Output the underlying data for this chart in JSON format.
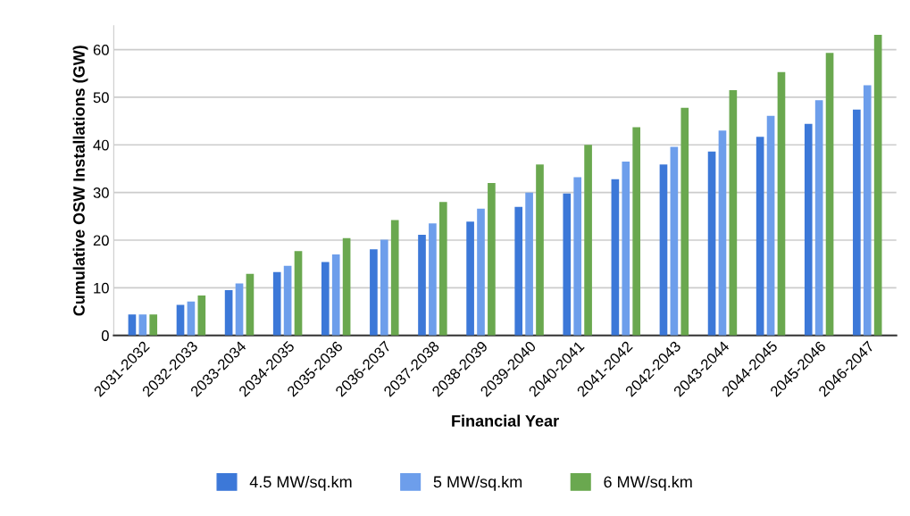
{
  "chart_data": {
    "type": "bar",
    "xlabel": "Financial Year",
    "ylabel": "Cumulative OSW Installations (GW)",
    "categories": [
      "2031-2032",
      "2032-2033",
      "2033-2034",
      "2034-2035",
      "2035-2036",
      "2036-2037",
      "2037-2038",
      "2038-2039",
      "2039-2040",
      "2040-2041",
      "2041-2042",
      "2042-2043",
      "2043-2044",
      "2044-2045",
      "2045-2046",
      "2046-2047"
    ],
    "series": [
      {
        "name": "4.5 MW/sq.km",
        "color": "#3c78d8",
        "values": [
          4.4,
          6.4,
          9.5,
          13.3,
          15.4,
          18.1,
          21.1,
          23.9,
          27.0,
          29.8,
          32.8,
          35.9,
          38.6,
          41.7,
          44.4,
          47.4
        ]
      },
      {
        "name": "5 MW/sq.km",
        "color": "#6d9eeb",
        "values": [
          4.4,
          7.1,
          10.9,
          14.6,
          17.0,
          20.1,
          23.5,
          26.6,
          30.0,
          33.2,
          36.5,
          39.6,
          43.0,
          46.1,
          49.4,
          52.5
        ]
      },
      {
        "name": "6 MW/sq.km",
        "color": "#6aa84f",
        "values": [
          4.4,
          8.4,
          12.9,
          17.7,
          20.4,
          24.2,
          28.0,
          32.0,
          35.9,
          40.0,
          43.7,
          47.8,
          51.5,
          55.3,
          59.3,
          63.1
        ]
      }
    ],
    "ylim": [
      0,
      65
    ],
    "yticks": [
      0,
      10,
      20,
      30,
      40,
      50,
      60
    ],
    "grid": "y",
    "legend": "bottom"
  }
}
